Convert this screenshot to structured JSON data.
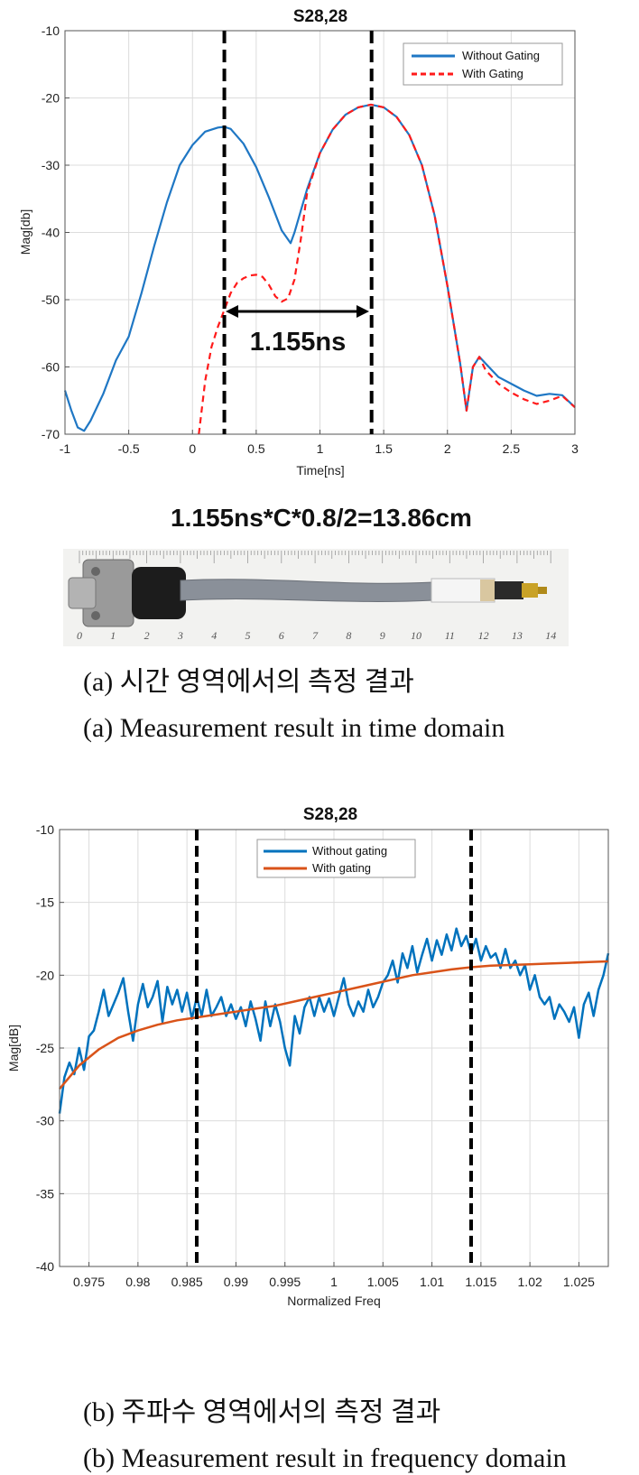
{
  "chart_data": [
    {
      "type": "line",
      "title": "S28,28",
      "xlabel": "Time[ns]",
      "ylabel": "Mag[db]",
      "xlim": [
        -1,
        3
      ],
      "ylim": [
        -70,
        -10
      ],
      "xticks": [
        "-1",
        "-0.5",
        "0",
        "0.5",
        "1",
        "1.5",
        "2",
        "2.5",
        "3"
      ],
      "yticks": [
        "-10",
        "-20",
        "-30",
        "-40",
        "-50",
        "-60",
        "-70"
      ],
      "grid": true,
      "legend_position": "top-right",
      "series": [
        {
          "name": "Without Gating",
          "color": "#1f77c4",
          "style": "solid",
          "x": [
            -1.0,
            -0.95,
            -0.9,
            -0.85,
            -0.8,
            -0.7,
            -0.6,
            -0.5,
            -0.4,
            -0.3,
            -0.2,
            -0.1,
            0.0,
            0.1,
            0.2,
            0.25,
            0.3,
            0.4,
            0.5,
            0.6,
            0.7,
            0.77,
            0.8,
            0.9,
            1.0,
            1.1,
            1.2,
            1.3,
            1.4,
            1.5,
            1.6,
            1.7,
            1.8,
            1.9,
            2.0,
            2.1,
            2.15,
            2.2,
            2.25,
            2.3,
            2.4,
            2.5,
            2.6,
            2.7,
            2.8,
            2.9,
            3.0
          ],
          "y": [
            -63.5,
            -66.5,
            -69,
            -69.5,
            -68,
            -64,
            -59,
            -55.5,
            -49,
            -42,
            -35.5,
            -30,
            -27,
            -25,
            -24.4,
            -24.3,
            -24.6,
            -26.8,
            -30.3,
            -34.8,
            -39.7,
            -41.6,
            -40,
            -33.5,
            -28.2,
            -24.7,
            -22.5,
            -21.4,
            -21.0,
            -21.4,
            -22.8,
            -25.5,
            -30,
            -37.5,
            -48,
            -59.5,
            -66.5,
            -60,
            -58.5,
            -59.5,
            -61.5,
            -62.5,
            -63.5,
            -64.3,
            -64,
            -64.2,
            -66
          ]
        },
        {
          "name": "With Gating",
          "color": "#ff1a1a",
          "style": "dashed",
          "x": [
            0.05,
            0.1,
            0.15,
            0.2,
            0.25,
            0.3,
            0.35,
            0.4,
            0.45,
            0.5,
            0.55,
            0.6,
            0.65,
            0.7,
            0.75,
            0.8,
            0.85,
            0.9,
            1.0,
            1.1,
            1.2,
            1.3,
            1.4,
            1.5,
            1.6,
            1.7,
            1.8,
            1.9,
            2.0,
            2.1,
            2.15,
            2.2,
            2.25,
            2.3,
            2.4,
            2.5,
            2.6,
            2.7,
            2.8,
            2.9,
            3.0
          ],
          "y": [
            -70,
            -62,
            -57,
            -54,
            -51.5,
            -49,
            -47.5,
            -46.8,
            -46.4,
            -46.3,
            -46.6,
            -47.8,
            -49.5,
            -50.3,
            -49.8,
            -47,
            -41,
            -34,
            -28.2,
            -24.7,
            -22.5,
            -21.4,
            -21.0,
            -21.4,
            -22.8,
            -25.5,
            -30,
            -37.5,
            -48,
            -59.5,
            -66.5,
            -60,
            -58.5,
            -60.5,
            -62.5,
            -63.8,
            -64.8,
            -65.5,
            -65,
            -64.3,
            -66
          ]
        }
      ],
      "vlines": [
        0.25,
        1.405
      ],
      "annotation": "1.155ns"
    },
    {
      "type": "line",
      "title": "S28,28",
      "xlabel": "Normalized Freq",
      "ylabel": "Mag[dB]",
      "xlim": [
        0.972,
        1.028
      ],
      "ylim": [
        -40,
        -10
      ],
      "xticks": [
        "0.975",
        "0.98",
        "0.985",
        "0.99",
        "0.995",
        "1",
        "1.005",
        "1.01",
        "1.015",
        "1.02",
        "1.025"
      ],
      "yticks": [
        "-10",
        "-15",
        "-20",
        "-25",
        "-30",
        "-35",
        "-40"
      ],
      "grid": true,
      "legend_position": "top-center",
      "series": [
        {
          "name": "Without gating",
          "color": "#0072bd",
          "style": "solid",
          "x": [
            0.972,
            0.9725,
            0.973,
            0.9735,
            0.974,
            0.9745,
            0.975,
            0.9755,
            0.976,
            0.9765,
            0.977,
            0.9775,
            0.978,
            0.9785,
            0.979,
            0.9795,
            0.98,
            0.9805,
            0.981,
            0.9815,
            0.982,
            0.9825,
            0.983,
            0.9835,
            0.984,
            0.9845,
            0.985,
            0.9855,
            0.986,
            0.9865,
            0.987,
            0.9875,
            0.988,
            0.9885,
            0.989,
            0.9895,
            0.99,
            0.9905,
            0.991,
            0.9915,
            0.992,
            0.9925,
            0.993,
            0.9935,
            0.994,
            0.9945,
            0.995,
            0.9955,
            0.996,
            0.9965,
            0.997,
            0.9975,
            0.998,
            0.9985,
            0.999,
            0.9995,
            1.0,
            1.0005,
            1.001,
            1.0015,
            1.002,
            1.0025,
            1.003,
            1.0035,
            1.004,
            1.0045,
            1.005,
            1.0055,
            1.006,
            1.0065,
            1.007,
            1.0075,
            1.008,
            1.0085,
            1.009,
            1.0095,
            1.01,
            1.0105,
            1.011,
            1.0115,
            1.012,
            1.0125,
            1.013,
            1.0135,
            1.014,
            1.0145,
            1.015,
            1.0155,
            1.016,
            1.0165,
            1.017,
            1.0175,
            1.018,
            1.0185,
            1.019,
            1.0195,
            1.02,
            1.0205,
            1.021,
            1.0215,
            1.022,
            1.0225,
            1.023,
            1.0235,
            1.024,
            1.0245,
            1.025,
            1.0255,
            1.026,
            1.0265,
            1.027,
            1.0275,
            1.028
          ],
          "y": [
            -29.5,
            -27.0,
            -26.0,
            -26.8,
            -25.0,
            -26.5,
            -24.2,
            -23.8,
            -22.5,
            -21.0,
            -22.8,
            -22.0,
            -21.2,
            -20.2,
            -22.5,
            -24.5,
            -22.0,
            -20.6,
            -22.2,
            -21.5,
            -20.4,
            -23.2,
            -20.8,
            -22.0,
            -21.0,
            -22.5,
            -21.2,
            -23.0,
            -21.5,
            -22.8,
            -21.0,
            -22.8,
            -22.2,
            -21.5,
            -22.8,
            -22.0,
            -23.0,
            -22.2,
            -23.5,
            -21.8,
            -23.0,
            -24.5,
            -21.8,
            -23.5,
            -22.0,
            -23.2,
            -25.0,
            -26.2,
            -22.8,
            -24.0,
            -22.2,
            -21.5,
            -22.8,
            -21.5,
            -22.5,
            -21.6,
            -22.8,
            -21.5,
            -20.2,
            -22.0,
            -22.8,
            -21.8,
            -22.5,
            -21.0,
            -22.2,
            -21.5,
            -20.5,
            -20.0,
            -19.0,
            -20.5,
            -18.5,
            -19.5,
            -18.0,
            -19.8,
            -18.6,
            -17.5,
            -19.0,
            -17.6,
            -18.6,
            -17.2,
            -18.3,
            -16.8,
            -18.0,
            -17.3,
            -18.5,
            -17.5,
            -19.0,
            -18.0,
            -18.8,
            -18.5,
            -19.5,
            -18.2,
            -19.5,
            -19.0,
            -20.0,
            -19.3,
            -21.0,
            -20.0,
            -21.5,
            -22.0,
            -21.5,
            -23.0,
            -22.0,
            -22.5,
            -23.2,
            -22.2,
            -24.3,
            -22.0,
            -21.2,
            -22.8,
            -21.0,
            -20.0,
            -18.5
          ]
        },
        {
          "name": "With gating",
          "color": "#d95319",
          "style": "solid",
          "x": [
            0.972,
            0.974,
            0.976,
            0.978,
            0.98,
            0.982,
            0.984,
            0.986,
            0.988,
            0.99,
            0.992,
            0.994,
            0.996,
            0.998,
            1.0,
            1.002,
            1.004,
            1.006,
            1.008,
            1.01,
            1.012,
            1.014,
            1.016,
            1.018,
            1.02,
            1.022,
            1.024,
            1.026,
            1.028
          ],
          "y": [
            -27.8,
            -26.2,
            -25.1,
            -24.3,
            -23.8,
            -23.4,
            -23.1,
            -22.9,
            -22.7,
            -22.5,
            -22.3,
            -22.1,
            -21.8,
            -21.5,
            -21.2,
            -20.9,
            -20.6,
            -20.3,
            -20.0,
            -19.8,
            -19.6,
            -19.45,
            -19.35,
            -19.3,
            -19.25,
            -19.2,
            -19.15,
            -19.1,
            -19.05
          ]
        }
      ],
      "vlines": [
        0.986,
        1.014
      ]
    }
  ],
  "formula": "1.155ns*C*0.8/2=13.86cm",
  "ruler_numbers": [
    "0",
    "1",
    "2",
    "3",
    "4",
    "5",
    "6",
    "7",
    "8",
    "9",
    "10",
    "11",
    "12",
    "13",
    "14"
  ],
  "captions": {
    "a_korean": "(a) 시간 영역에서의 측정 결과",
    "a_english": "(a) Measurement result in time domain",
    "b_korean": "(b) 주파수 영역에서의 측정 결과",
    "b_english": "(b) Measurement result in frequency domain"
  }
}
